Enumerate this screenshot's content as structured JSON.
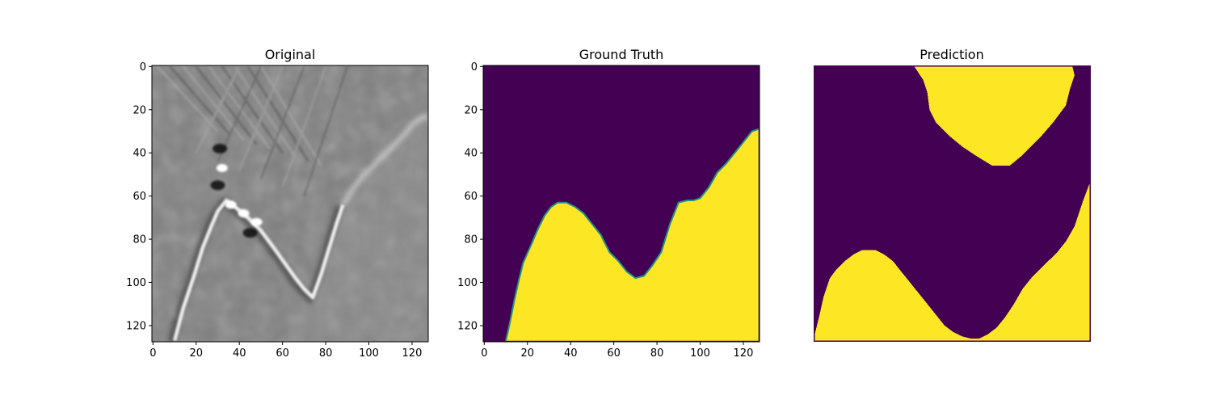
{
  "chart_data": [
    {
      "type": "heatmap",
      "title": "Original",
      "colormap": "gray",
      "image_size": [
        128,
        128
      ],
      "xlim": [
        0,
        127
      ],
      "ylim": [
        127,
        0
      ],
      "x_ticks": [
        0,
        20,
        40,
        60,
        80,
        100,
        120
      ],
      "y_ticks": [
        0,
        20,
        40,
        60,
        80,
        100,
        120
      ],
      "axes_visible": true,
      "background_value": 0.5,
      "bright_curve": [
        [
          10,
          127
        ],
        [
          14,
          112
        ],
        [
          19,
          97
        ],
        [
          23,
          84
        ],
        [
          27,
          74
        ],
        [
          30,
          67
        ],
        [
          34,
          62
        ],
        [
          38,
          65
        ],
        [
          44,
          70
        ],
        [
          50,
          76
        ],
        [
          56,
          84
        ],
        [
          61,
          91
        ],
        [
          66,
          98
        ],
        [
          70,
          103
        ],
        [
          74,
          107
        ],
        [
          78,
          96
        ],
        [
          81,
          86
        ],
        [
          85,
          73
        ],
        [
          88,
          64
        ]
      ],
      "faint_curve": [
        [
          88,
          64
        ],
        [
          93,
          56
        ],
        [
          98,
          50
        ],
        [
          103,
          45
        ],
        [
          108,
          40
        ],
        [
          112,
          36
        ],
        [
          116,
          32
        ],
        [
          120,
          27
        ],
        [
          124,
          24
        ],
        [
          127,
          23
        ]
      ],
      "bright_spots": [
        [
          32,
          47
        ],
        [
          36,
          64
        ],
        [
          42,
          68
        ],
        [
          48,
          72
        ]
      ],
      "dark_spots": [
        [
          31,
          38
        ],
        [
          30,
          55
        ],
        [
          45,
          77
        ]
      ]
    },
    {
      "type": "heatmap",
      "title": "Ground Truth",
      "colormap": "viridis",
      "colors": {
        "low": "#440154",
        "high": "#fde725",
        "edge": "#21918c"
      },
      "image_size": [
        128,
        128
      ],
      "xlim": [
        0,
        127
      ],
      "ylim": [
        127,
        0
      ],
      "x_ticks": [
        0,
        20,
        40,
        60,
        80,
        100,
        120
      ],
      "y_ticks": [
        0,
        20,
        40,
        60,
        80,
        100,
        120
      ],
      "axes_visible": true,
      "boundary": [
        [
          10,
          127
        ],
        [
          12,
          118
        ],
        [
          14,
          108
        ],
        [
          16,
          99
        ],
        [
          18,
          91
        ],
        [
          22,
          82
        ],
        [
          25,
          75
        ],
        [
          28,
          69
        ],
        [
          31,
          65
        ],
        [
          34,
          63
        ],
        [
          38,
          63
        ],
        [
          42,
          65
        ],
        [
          46,
          68
        ],
        [
          50,
          73
        ],
        [
          54,
          78
        ],
        [
          58,
          86
        ],
        [
          62,
          90
        ],
        [
          66,
          95
        ],
        [
          70,
          98
        ],
        [
          74,
          97
        ],
        [
          78,
          92
        ],
        [
          82,
          86
        ],
        [
          86,
          73
        ],
        [
          90,
          63
        ],
        [
          94,
          62
        ],
        [
          97,
          62
        ],
        [
          100,
          61
        ],
        [
          104,
          56
        ],
        [
          108,
          49
        ],
        [
          112,
          45
        ],
        [
          116,
          40
        ],
        [
          120,
          35
        ],
        [
          124,
          30
        ],
        [
          127,
          29
        ]
      ]
    },
    {
      "type": "heatmap",
      "title": "Prediction",
      "colormap": "viridis",
      "colors": {
        "low": "#440154",
        "high": "#fde725"
      },
      "image_size": [
        128,
        128
      ],
      "axes_visible": false,
      "top_region_boundary": [
        [
          46,
          0
        ],
        [
          50,
          6
        ],
        [
          52,
          12
        ],
        [
          53,
          20
        ],
        [
          56,
          26
        ],
        [
          62,
          32
        ],
        [
          68,
          37
        ],
        [
          74,
          41
        ],
        [
          82,
          46
        ],
        [
          90,
          46
        ],
        [
          96,
          41
        ],
        [
          104,
          33
        ],
        [
          110,
          26
        ],
        [
          116,
          18
        ],
        [
          118,
          10
        ],
        [
          120,
          4
        ],
        [
          119,
          0
        ]
      ],
      "bottom_region_boundary": [
        [
          0,
          124
        ],
        [
          2,
          116
        ],
        [
          4,
          107
        ],
        [
          7,
          98
        ],
        [
          10,
          94
        ],
        [
          14,
          90
        ],
        [
          18,
          87
        ],
        [
          22,
          85
        ],
        [
          28,
          85
        ],
        [
          32,
          87
        ],
        [
          36,
          90
        ],
        [
          40,
          95
        ],
        [
          44,
          100
        ],
        [
          48,
          105
        ],
        [
          52,
          110
        ],
        [
          56,
          115
        ],
        [
          60,
          120
        ],
        [
          64,
          123
        ],
        [
          68,
          125
        ],
        [
          72,
          126
        ],
        [
          76,
          126
        ],
        [
          80,
          124
        ],
        [
          84,
          121
        ],
        [
          88,
          116
        ],
        [
          92,
          110
        ],
        [
          96,
          103
        ],
        [
          100,
          98
        ],
        [
          104,
          94
        ],
        [
          108,
          90
        ],
        [
          112,
          86
        ],
        [
          116,
          81
        ],
        [
          120,
          74
        ],
        [
          124,
          62
        ],
        [
          127,
          54
        ],
        [
          127,
          127
        ],
        [
          0,
          127
        ]
      ]
    }
  ]
}
